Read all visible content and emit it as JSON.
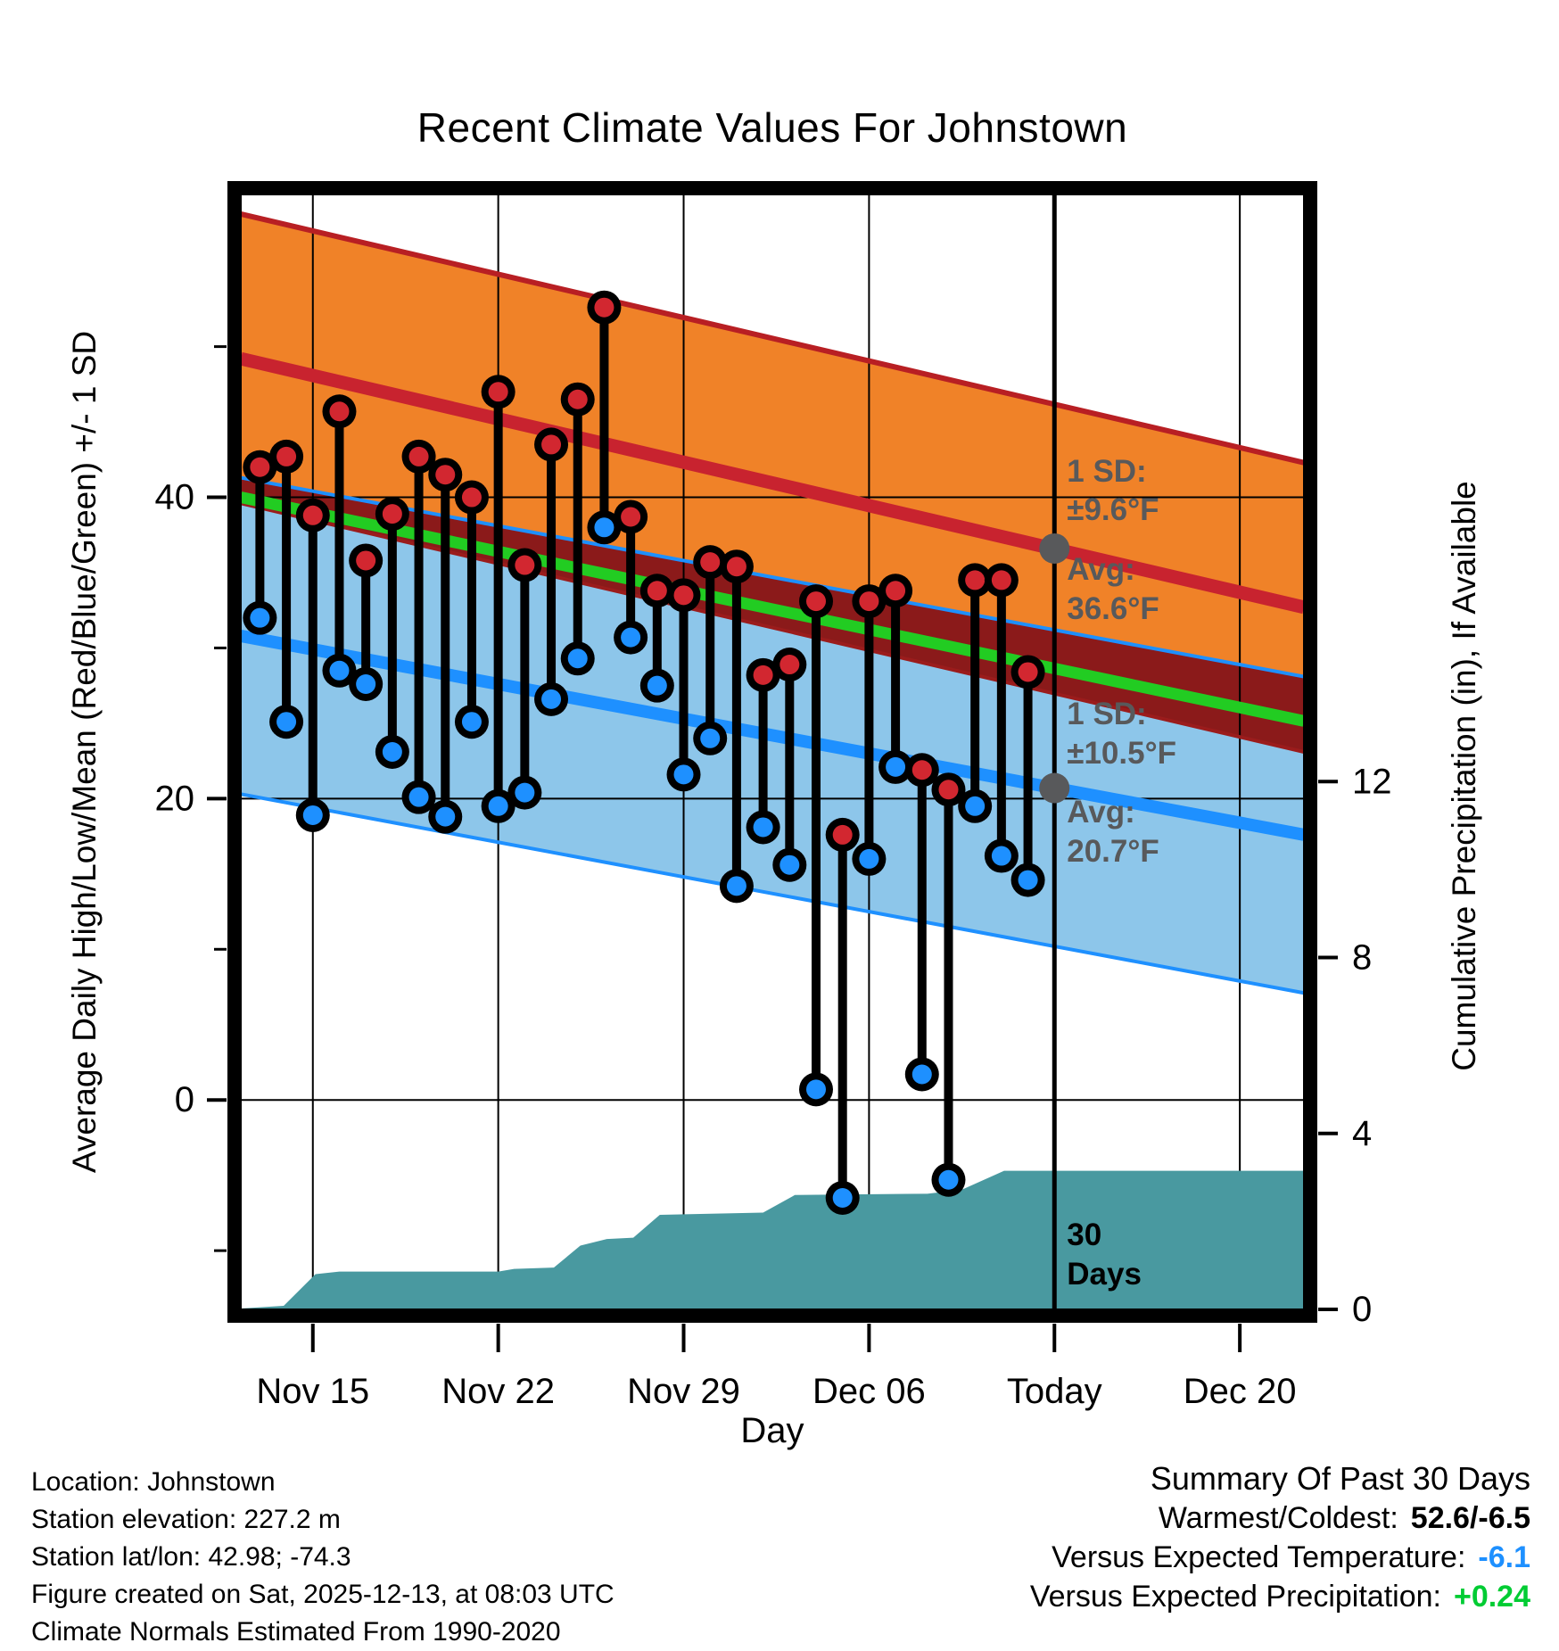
{
  "title": "Recent Climate Values For Johnstown",
  "axes": {
    "left_title": "Average Daily High/Low/Mean (Red/Blue/Green) +/- 1 SD",
    "right_title": "Cumulative Precipitation (in), If Available",
    "x_title": "Day",
    "left_ticks": [
      {
        "value": 40,
        "label": "40"
      },
      {
        "value": 20,
        "label": "20"
      },
      {
        "value": 0,
        "label": "0"
      }
    ],
    "left_minor_ticks": [
      50,
      30,
      10,
      -10
    ],
    "right_ticks": [
      {
        "value": 12,
        "label": "12"
      },
      {
        "value": 8,
        "label": "8"
      },
      {
        "value": 4,
        "label": "4"
      },
      {
        "value": 0,
        "label": "0"
      }
    ],
    "x_ticks": [
      {
        "day": 2,
        "label": "Nov 15"
      },
      {
        "day": 9,
        "label": "Nov 22"
      },
      {
        "day": 16,
        "label": "Nov 29"
      },
      {
        "day": 23,
        "label": "Dec 06"
      },
      {
        "day": 30,
        "label": "Today"
      },
      {
        "day": 37,
        "label": "Dec 20"
      }
    ]
  },
  "chart_data": {
    "type": "composite",
    "temp_axis_range_f": [
      -13.9,
      60.1
    ],
    "precip_axis_range_in": [
      0,
      25.35
    ],
    "day_axis_range": [
      -0.72,
      39.42
    ],
    "today_day": 30,
    "daily_high_low": [
      {
        "d": "Nov 13",
        "hi": 42.0,
        "lo": 32.0
      },
      {
        "d": "Nov 14",
        "hi": 42.7,
        "lo": 25.1
      },
      {
        "d": "Nov 15",
        "hi": 38.8,
        "lo": 18.9
      },
      {
        "d": "Nov 16",
        "hi": 45.7,
        "lo": 28.5
      },
      {
        "d": "Nov 17",
        "hi": 35.8,
        "lo": 27.6
      },
      {
        "d": "Nov 18",
        "hi": 38.9,
        "lo": 23.1
      },
      {
        "d": "Nov 19",
        "hi": 42.7,
        "lo": 20.1
      },
      {
        "d": "Nov 20",
        "hi": 41.5,
        "lo": 18.8
      },
      {
        "d": "Nov 21",
        "hi": 40.0,
        "lo": 25.1
      },
      {
        "d": "Nov 22",
        "hi": 47.0,
        "lo": 19.5
      },
      {
        "d": "Nov 23",
        "hi": 35.5,
        "lo": 20.4
      },
      {
        "d": "Nov 24",
        "hi": 43.5,
        "lo": 26.6
      },
      {
        "d": "Nov 25",
        "hi": 46.5,
        "lo": 29.3
      },
      {
        "d": "Nov 26",
        "hi": 52.6,
        "lo": 38.0
      },
      {
        "d": "Nov 27",
        "hi": 38.7,
        "lo": 30.7
      },
      {
        "d": "Nov 28",
        "hi": 33.8,
        "lo": 27.5
      },
      {
        "d": "Nov 29",
        "hi": 33.5,
        "lo": 21.6
      },
      {
        "d": "Nov 30",
        "hi": 35.7,
        "lo": 24.0
      },
      {
        "d": "Dec 01",
        "hi": 35.4,
        "lo": 14.2
      },
      {
        "d": "Dec 02",
        "hi": 28.2,
        "lo": 18.1
      },
      {
        "d": "Dec 03",
        "hi": 28.9,
        "lo": 15.6
      },
      {
        "d": "Dec 04",
        "hi": 33.1,
        "lo": 0.7
      },
      {
        "d": "Dec 05",
        "hi": 17.6,
        "lo": -6.5
      },
      {
        "d": "Dec 06",
        "hi": 33.1,
        "lo": 16.0
      },
      {
        "d": "Dec 07",
        "hi": 33.8,
        "lo": 22.1
      },
      {
        "d": "Dec 08",
        "hi": 21.9,
        "lo": 1.7
      },
      {
        "d": "Dec 09",
        "hi": 20.6,
        "lo": -5.3
      },
      {
        "d": "Dec 10",
        "hi": 34.5,
        "lo": 19.5
      },
      {
        "d": "Dec 11",
        "hi": 34.5,
        "lo": 16.2
      },
      {
        "d": "Dec 12",
        "hi": 28.4,
        "lo": 14.6
      }
    ],
    "normals": {
      "avg_high_start_end_f": [
        49.2,
        32.7
      ],
      "avg_low_start_end_f": [
        30.8,
        17.6
      ],
      "sd_high_f": 9.6,
      "sd_low_f": 10.5
    },
    "cumulative_precip_in": [
      [
        -0.72,
        0.02
      ],
      [
        0.9,
        0.08
      ],
      [
        2.1,
        0.8
      ],
      [
        3.0,
        0.86
      ],
      [
        9.0,
        0.86
      ],
      [
        9.6,
        0.92
      ],
      [
        11.1,
        0.95
      ],
      [
        12.1,
        1.45
      ],
      [
        13.1,
        1.6
      ],
      [
        14.1,
        1.63
      ],
      [
        15.1,
        2.15
      ],
      [
        19.0,
        2.2
      ],
      [
        20.2,
        2.6
      ],
      [
        25.2,
        2.63
      ],
      [
        26.5,
        2.72
      ],
      [
        28.1,
        3.15
      ],
      [
        39.42,
        3.15
      ]
    ],
    "annotations": {
      "high_sd_label": "1 SD:",
      "high_sd_value": "±9.6°F",
      "high_avg_label": "Avg:",
      "high_avg_value": "36.6°F",
      "high_avg_f": 36.6,
      "low_sd_label": "1 SD:",
      "low_sd_value": "±10.5°F",
      "low_avg_label": "Avg:",
      "low_avg_value": "20.7°F",
      "low_avg_f": 20.7,
      "today_marker_line1": "30",
      "today_marker_line2": "Days"
    }
  },
  "colors": {
    "high_band_fill": "#F08228",
    "high_band_edge": "#B81F23",
    "avg_high_line": "#C8232F",
    "low_band_fill": "#8DC6EA",
    "low_band_edge": "#1E90FF",
    "avg_low_line": "#1E90FF",
    "overlap_band_fill": "#8B1A1A",
    "overlap_band_edge": "#9B1C1C",
    "mean_line": "#22CC22",
    "precip_fill": "#4999A0",
    "stem": "#000000",
    "high_dot": "#D22730",
    "low_dot": "#1E90FF",
    "annotation_gray": "#58595B",
    "grid": "#000000"
  },
  "footer": {
    "line1": "Location: Johnstown",
    "line2": "Station elevation: 227.2 m",
    "line3": "Station lat/lon: 42.98; -74.3",
    "line4": "Figure created on Sat, 2025-12-13, at 08:03 UTC",
    "line5": "Climate Normals Estimated From 1990-2020"
  },
  "summary": {
    "title": "Summary Of Past 30 Days",
    "row1_label": "Warmest/Coldest:",
    "row1_value": "52.6/-6.5",
    "row1_color": "#000000",
    "row2_label": "Versus Expected Temperature:",
    "row2_value": "-6.1",
    "row2_color": "#1E90FF",
    "row3_label": "Versus Expected Precipitation:",
    "row3_value": "+0.24",
    "row3_color": "#00CC33"
  }
}
